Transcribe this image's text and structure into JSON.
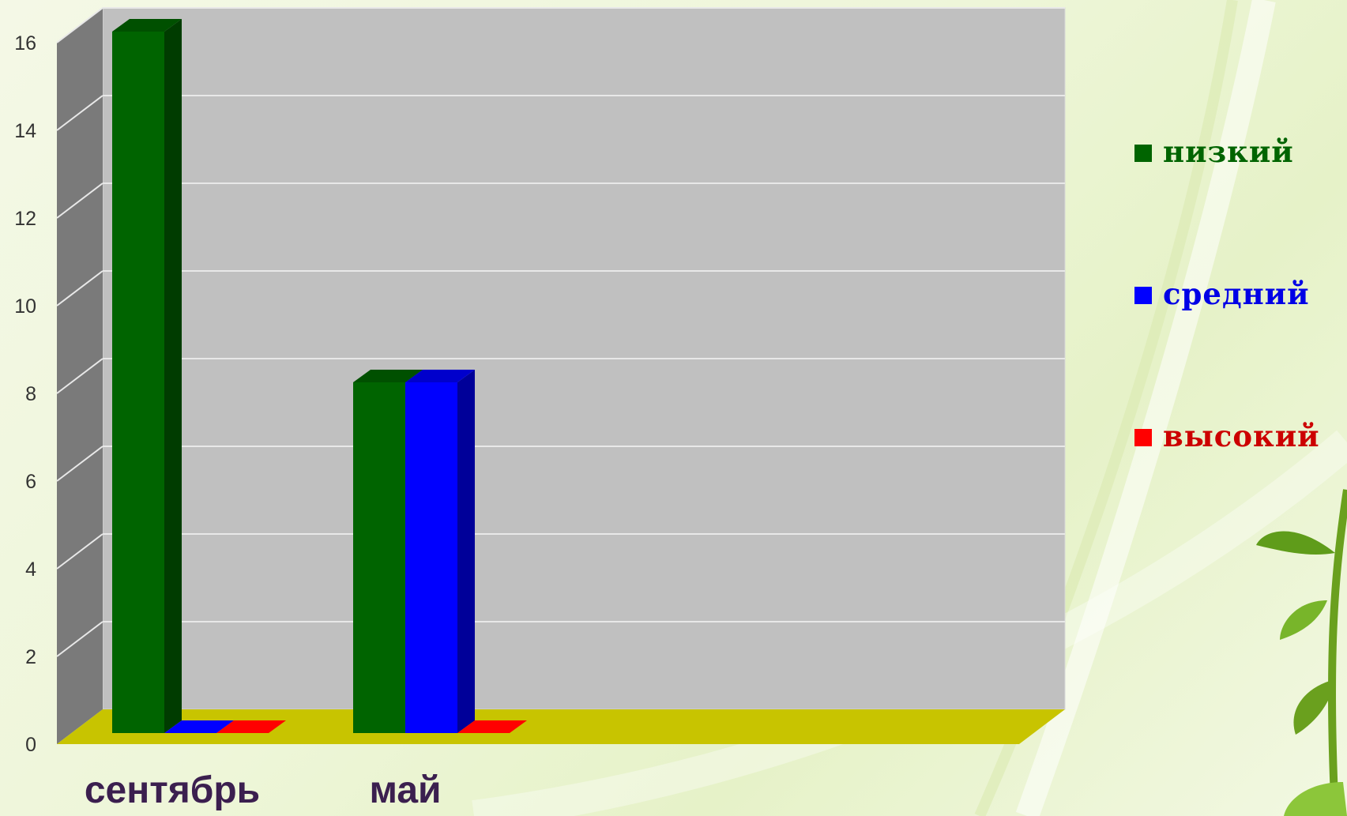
{
  "chart_data": {
    "type": "bar",
    "categories": [
      "сентябрь",
      "май"
    ],
    "series": [
      {
        "name": "низкий",
        "values": [
          16,
          8
        ],
        "color": "#006400"
      },
      {
        "name": "средний",
        "values": [
          0,
          8
        ],
        "color": "#0000ff"
      },
      {
        "name": "высокий",
        "values": [
          0,
          0
        ],
        "color": "#ff0000"
      }
    ],
    "ylim": [
      0,
      16
    ],
    "yticks": [
      "0",
      "2",
      "4",
      "6",
      "8",
      "10",
      "12",
      "14",
      "16"
    ],
    "grid": true,
    "legend_position": "right",
    "style": "3d-column",
    "colors": {
      "back_wall": "#c0c0c0",
      "side_wall": "#7a7a7a",
      "floor": "#c8c400",
      "gridline": "#e8e8e8",
      "category_label": "#3b1f4f"
    }
  }
}
